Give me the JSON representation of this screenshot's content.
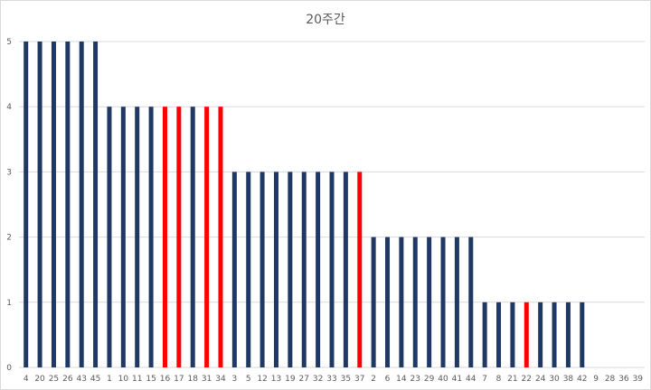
{
  "chart_data": {
    "type": "bar",
    "title": "20주간",
    "xlabel": "",
    "ylabel": "",
    "ylim": [
      0,
      5
    ],
    "yticks": [
      0,
      1,
      2,
      3,
      4,
      5
    ],
    "grid": true,
    "legend": "none",
    "categories": [
      "4",
      "20",
      "25",
      "26",
      "43",
      "45",
      "1",
      "10",
      "11",
      "15",
      "16",
      "17",
      "18",
      "31",
      "34",
      "3",
      "5",
      "12",
      "13",
      "19",
      "27",
      "32",
      "33",
      "35",
      "37",
      "2",
      "6",
      "14",
      "23",
      "29",
      "40",
      "41",
      "44",
      "7",
      "8",
      "21",
      "22",
      "24",
      "30",
      "38",
      "42",
      "9",
      "28",
      "36",
      "39"
    ],
    "values": [
      5,
      5,
      5,
      5,
      5,
      5,
      4,
      4,
      4,
      4,
      4,
      4,
      4,
      4,
      4,
      3,
      3,
      3,
      3,
      3,
      3,
      3,
      3,
      3,
      3,
      2,
      2,
      2,
      2,
      2,
      2,
      2,
      2,
      1,
      1,
      1,
      1,
      1,
      1,
      1,
      1,
      0,
      0,
      0,
      0
    ],
    "highlighted": [
      "16",
      "17",
      "31",
      "34",
      "37",
      "22"
    ],
    "colors": {
      "default": "#1f3864",
      "highlight": "#ff0000",
      "grid": "#d9d9d9",
      "text": "#595959"
    }
  }
}
